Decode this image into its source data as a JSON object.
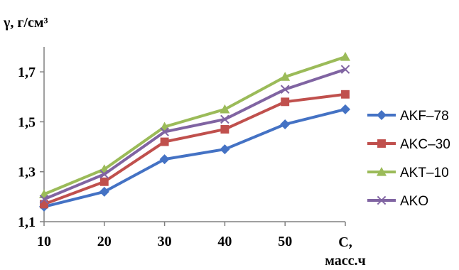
{
  "chart_data": {
    "type": "line",
    "ylabel": "γ, г/см³",
    "xlabel_line1": "С,",
    "xlabel_line2": "масс.ч",
    "x": [
      10,
      20,
      30,
      40,
      50,
      60
    ],
    "x_tick_labels": [
      "10",
      "20",
      "30",
      "40",
      "50",
      ""
    ],
    "y_ticks": [
      "1,1",
      "1,3",
      "1,5",
      "1,7"
    ],
    "ylim": [
      1.1,
      1.8
    ],
    "xlim": [
      10,
      60
    ],
    "grid": false,
    "legend_position": "right",
    "series": [
      {
        "name": "AKF–78",
        "color": "#4472C4",
        "marker": "diamond",
        "values": [
          1.16,
          1.22,
          1.35,
          1.39,
          1.49,
          1.55
        ]
      },
      {
        "name": "AKC–30",
        "color": "#C0504D",
        "marker": "square",
        "values": [
          1.17,
          1.26,
          1.42,
          1.47,
          1.58,
          1.61
        ]
      },
      {
        "name": "AKT–10",
        "color": "#9BBB59",
        "marker": "triangle",
        "values": [
          1.21,
          1.31,
          1.48,
          1.55,
          1.68,
          1.76
        ]
      },
      {
        "name": "AKO",
        "color": "#8064A2",
        "marker": "x",
        "values": [
          1.19,
          1.29,
          1.46,
          1.51,
          1.63,
          1.71
        ]
      }
    ]
  }
}
